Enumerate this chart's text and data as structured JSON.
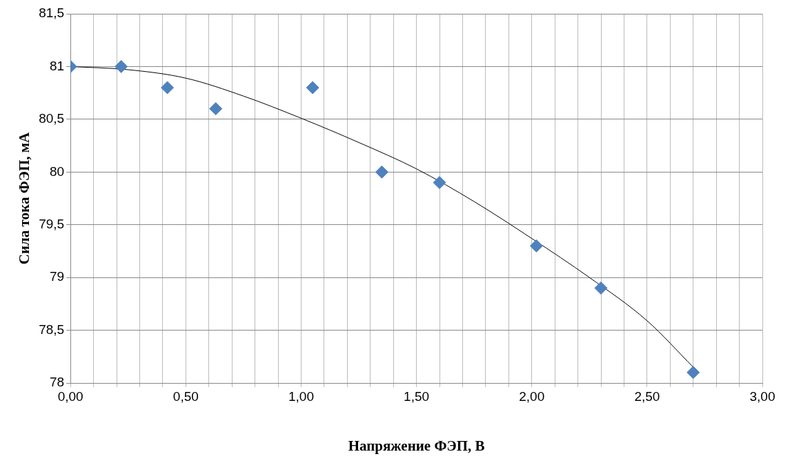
{
  "chart_data": {
    "type": "scatter",
    "xlabel": "Напряжение ФЭП, В",
    "ylabel": "Сила тока ФЭП, мА",
    "marker": "diamond",
    "grid": true,
    "legend": false,
    "xlim": [
      0,
      3
    ],
    "xticks": [
      {
        "value": 0,
        "label": "0,00"
      },
      {
        "value": 0.1,
        "label": null
      },
      {
        "value": 0.2,
        "label": null
      },
      {
        "value": 0.3,
        "label": null
      },
      {
        "value": 0.4,
        "label": null
      },
      {
        "value": 0.5,
        "label": "0,50"
      },
      {
        "value": 0.6,
        "label": null
      },
      {
        "value": 0.7,
        "label": null
      },
      {
        "value": 0.8,
        "label": null
      },
      {
        "value": 0.9,
        "label": null
      },
      {
        "value": 1,
        "label": "1,00"
      },
      {
        "value": 1.1,
        "label": null
      },
      {
        "value": 1.2,
        "label": null
      },
      {
        "value": 1.3,
        "label": null
      },
      {
        "value": 1.4,
        "label": null
      },
      {
        "value": 1.5,
        "label": "1,50"
      },
      {
        "value": 1.6,
        "label": null
      },
      {
        "value": 1.7,
        "label": null
      },
      {
        "value": 1.8,
        "label": null
      },
      {
        "value": 1.9,
        "label": null
      },
      {
        "value": 2,
        "label": "2,00"
      },
      {
        "value": 2.1,
        "label": null
      },
      {
        "value": 2.2,
        "label": null
      },
      {
        "value": 2.3,
        "label": null
      },
      {
        "value": 2.4,
        "label": null
      },
      {
        "value": 2.5,
        "label": "2,50"
      },
      {
        "value": 2.6,
        "label": null
      },
      {
        "value": 2.7,
        "label": null
      },
      {
        "value": 2.8,
        "label": null
      },
      {
        "value": 2.9,
        "label": null
      },
      {
        "value": 3,
        "label": "3,00"
      }
    ],
    "ylim": [
      78,
      81.5
    ],
    "yticks": [
      78,
      {
        "value": 78.5,
        "label": "78,5"
      },
      79,
      {
        "value": 79.5,
        "label": "79,5"
      },
      80,
      {
        "value": 80.5,
        "label": "80,5"
      },
      81,
      {
        "value": 81.5,
        "label": "81,5"
      }
    ],
    "series": [
      {
        "color": "#4f81bd",
        "x": [
          0,
          0.22,
          0.42,
          0.63,
          1.05,
          1.35,
          1.6,
          2.02,
          2.3,
          2.7
        ],
        "values": [
          81,
          81,
          80.8,
          80.6,
          80.8,
          80,
          79.9,
          79.3,
          78.9,
          78.1
        ]
      },
      {
        "type": "line",
        "color": "#000000",
        "marker": "none",
        "x": [
          0,
          0.25,
          0.5,
          0.75,
          1,
          1.25,
          1.5,
          1.75,
          2,
          2.25,
          2.5,
          2.7
        ],
        "values": [
          81,
          80.97,
          80.89,
          80.72,
          80.51,
          80.28,
          80.03,
          79.72,
          79.37,
          79.0,
          78.59,
          78.15
        ]
      }
    ]
  }
}
